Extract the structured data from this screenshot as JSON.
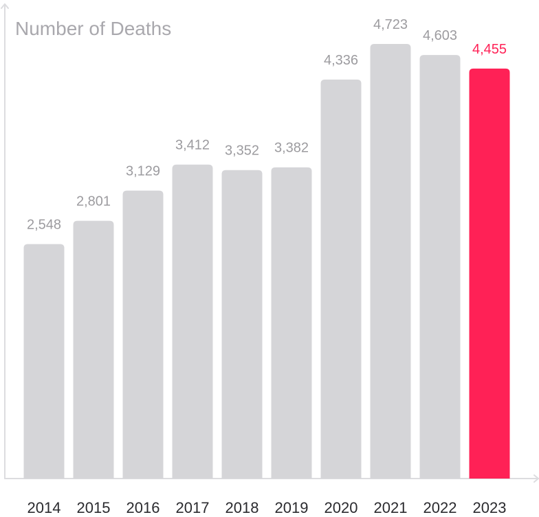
{
  "chart_data": {
    "type": "bar",
    "title": "Number of Deaths",
    "xlabel": "",
    "ylabel": "",
    "categories": [
      "2014",
      "2015",
      "2016",
      "2017",
      "2018",
      "2019",
      "2020",
      "2021",
      "2022",
      "2023"
    ],
    "values": [
      2548,
      2801,
      3129,
      3412,
      3352,
      3382,
      4336,
      4723,
      4603,
      4455
    ],
    "value_labels": [
      "2,548",
      "2,801",
      "3,129",
      "3,412",
      "3,352",
      "3,382",
      "4,336",
      "4,723",
      "4,603",
      "4,455"
    ],
    "ylim": [
      0,
      4723
    ],
    "grid": false,
    "highlight_index": 9,
    "colors": {
      "bar": "#d5d5d8",
      "highlight": "#ff2156",
      "axis": "#dcdcdf",
      "title": "#a9a8ad",
      "value_label": "#9c9b9f",
      "tick_label": "#2a2a2e"
    }
  }
}
